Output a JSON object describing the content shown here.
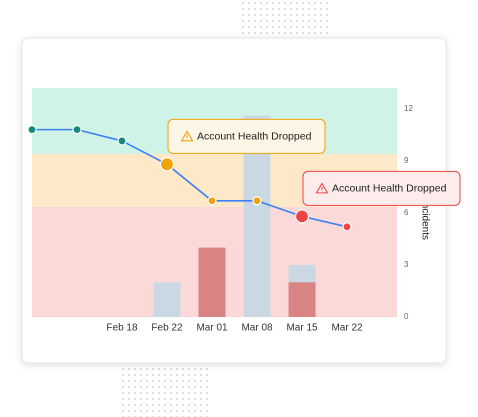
{
  "chart_data": {
    "type": "line",
    "categories": [
      null,
      null,
      "Feb 18",
      "Feb 22",
      "Mar 01",
      "Mar 08",
      "Mar 15",
      "Mar 22"
    ],
    "y2label": "Incidents",
    "y2lim": [
      0,
      13.2
    ],
    "y2ticks": [
      0,
      3,
      6,
      9,
      12
    ],
    "bands": [
      {
        "from": 9.4,
        "to": 13.2,
        "color": "#cff3e6",
        "point": "#13897a"
      },
      {
        "from": 6.35,
        "to": 9.4,
        "color": "#fde9c8",
        "point": "#f0a30a"
      },
      {
        "from": 0,
        "to": 6.35,
        "color": "#fbd9d9",
        "point": "#ef4444"
      }
    ],
    "line": {
      "color": "#3b82f6",
      "values": [
        10.8,
        10.8,
        10.15,
        8.8,
        6.7,
        6.7,
        5.8,
        5.2
      ]
    },
    "bars": [
      {
        "color": "#c9d8e3",
        "values": [
          null,
          null,
          null,
          2,
          null,
          11.6,
          3,
          null
        ]
      },
      {
        "color": "#d98484",
        "values": [
          null,
          null,
          null,
          null,
          4,
          null,
          2,
          null
        ]
      }
    ],
    "annotations": [
      {
        "index": 3,
        "text": "Account Health Dropped"
      },
      {
        "index": 6,
        "text": "Account Health Dropped"
      }
    ]
  }
}
